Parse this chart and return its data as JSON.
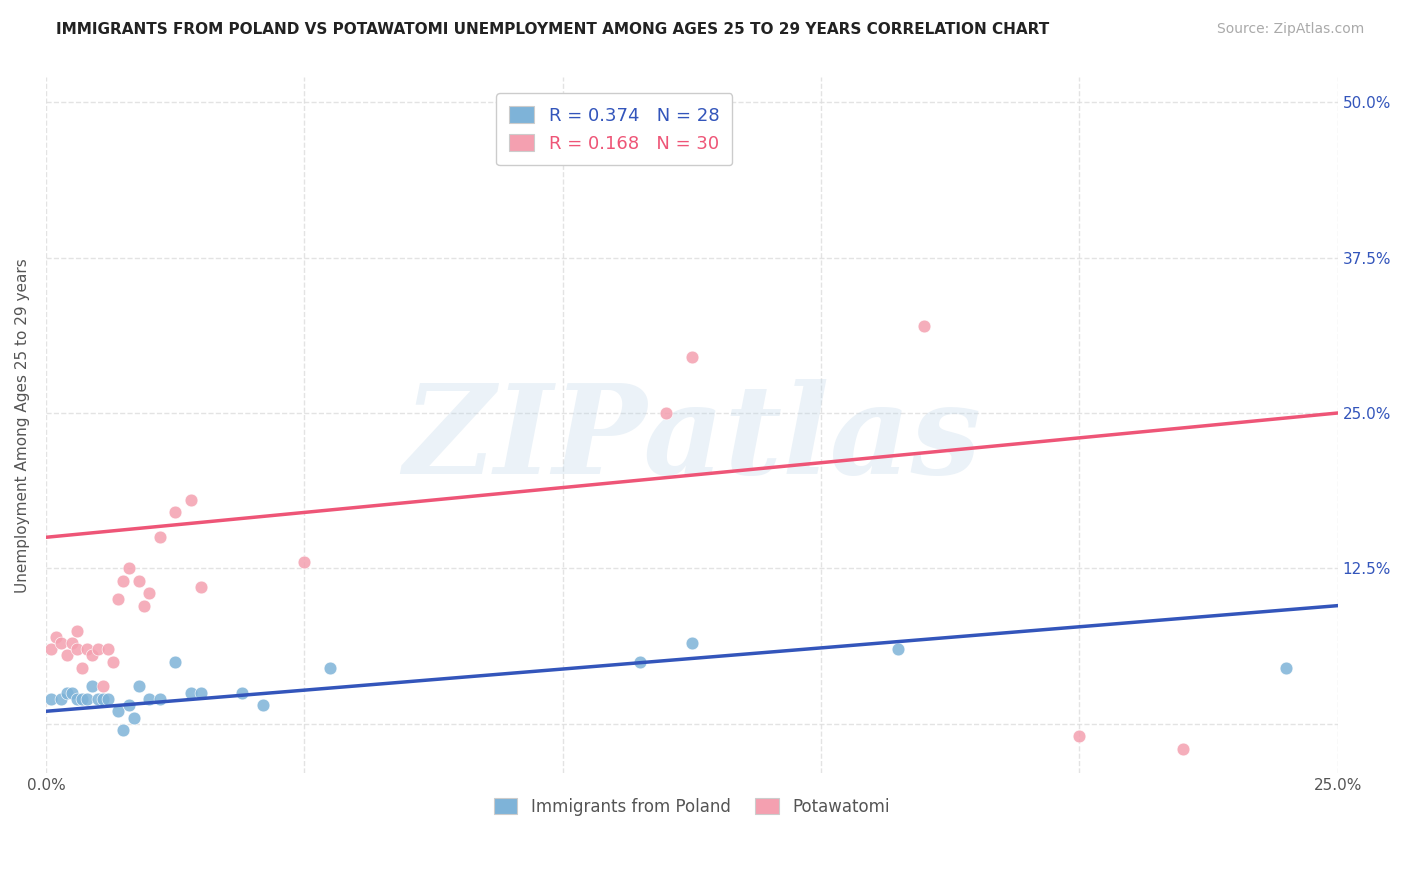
{
  "title": "IMMIGRANTS FROM POLAND VS POTAWATOMI UNEMPLOYMENT AMONG AGES 25 TO 29 YEARS CORRELATION CHART",
  "source": "Source: ZipAtlas.com",
  "ylabel": "Unemployment Among Ages 25 to 29 years",
  "xlim": [
    0.0,
    0.25
  ],
  "ylim": [
    -0.04,
    0.52
  ],
  "xticks": [
    0.0,
    0.05,
    0.1,
    0.15,
    0.2,
    0.25
  ],
  "yticks": [
    0.0,
    0.125,
    0.25,
    0.375,
    0.5
  ],
  "xticklabels": [
    "0.0%",
    "",
    "",
    "",
    "",
    "25.0%"
  ],
  "yticklabels_right": [
    "",
    "12.5%",
    "25.0%",
    "37.5%",
    "50.0%"
  ],
  "blue_color": "#7EB3D8",
  "pink_color": "#F4A0B0",
  "blue_line_color": "#3355BB",
  "pink_line_color": "#EE5577",
  "legend_R_blue": "R = 0.374",
  "legend_N_blue": "N = 28",
  "legend_R_pink": "R = 0.168",
  "legend_N_pink": "N = 30",
  "legend_label_blue": "Immigrants from Poland",
  "legend_label_pink": "Potawatomi",
  "watermark_text": "ZIPatlas",
  "blue_scatter_x": [
    0.001,
    0.003,
    0.004,
    0.005,
    0.006,
    0.007,
    0.008,
    0.009,
    0.01,
    0.011,
    0.012,
    0.014,
    0.015,
    0.016,
    0.017,
    0.018,
    0.02,
    0.022,
    0.025,
    0.028,
    0.03,
    0.038,
    0.042,
    0.055,
    0.115,
    0.125,
    0.165,
    0.24
  ],
  "blue_scatter_y": [
    0.02,
    0.02,
    0.025,
    0.025,
    0.02,
    0.02,
    0.02,
    0.03,
    0.02,
    0.02,
    0.02,
    0.01,
    -0.005,
    0.015,
    0.005,
    0.03,
    0.02,
    0.02,
    0.05,
    0.025,
    0.025,
    0.025,
    0.015,
    0.045,
    0.05,
    0.065,
    0.06,
    0.045
  ],
  "pink_scatter_x": [
    0.001,
    0.002,
    0.003,
    0.004,
    0.005,
    0.006,
    0.006,
    0.007,
    0.008,
    0.009,
    0.01,
    0.011,
    0.012,
    0.013,
    0.014,
    0.015,
    0.016,
    0.018,
    0.019,
    0.02,
    0.022,
    0.025,
    0.028,
    0.03,
    0.05,
    0.12,
    0.125,
    0.17,
    0.2,
    0.22
  ],
  "pink_scatter_y": [
    0.06,
    0.07,
    0.065,
    0.055,
    0.065,
    0.06,
    0.075,
    0.045,
    0.06,
    0.055,
    0.06,
    0.03,
    0.06,
    0.05,
    0.1,
    0.115,
    0.125,
    0.115,
    0.095,
    0.105,
    0.15,
    0.17,
    0.18,
    0.11,
    0.13,
    0.25,
    0.295,
    0.32,
    -0.01,
    -0.02
  ],
  "blue_line_x": [
    0.0,
    0.25
  ],
  "blue_line_y": [
    0.01,
    0.095
  ],
  "pink_line_x": [
    0.0,
    0.25
  ],
  "pink_line_y": [
    0.15,
    0.25
  ],
  "background_color": "#FFFFFF",
  "grid_color": "#DDDDDD",
  "title_fontsize": 11,
  "source_fontsize": 10,
  "tick_fontsize": 11,
  "legend_fontsize": 13,
  "ylabel_fontsize": 11,
  "scatter_size": 85
}
